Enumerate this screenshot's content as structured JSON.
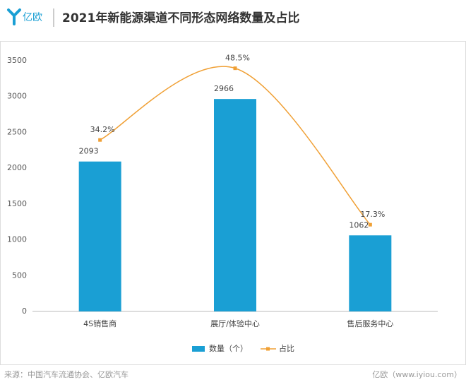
{
  "header": {
    "logo": "亿欧",
    "title": "2021年新能源渠道不同形态网络数量及占比"
  },
  "footer": {
    "source": "来源：中国汽车流通协会、亿欧汽车",
    "site": "亿欧（www.iyiou.com）"
  },
  "chart_data": {
    "type": "bar",
    "categories": [
      "4S销售商",
      "展厅/体验中心",
      "售后服务中心"
    ],
    "series": [
      {
        "name": "数量（个）",
        "type": "bar",
        "color": "#1a9fd4",
        "values": [
          2093,
          2966,
          1062
        ]
      },
      {
        "name": "占比",
        "type": "line",
        "axis": "y2",
        "color": "#f0a035",
        "values": [
          34.2,
          48.5,
          17.3
        ],
        "value_labels": [
          "34.2%",
          "48.5%",
          "17.3%"
        ]
      }
    ],
    "ylim": [
      0,
      3500
    ],
    "yticks": [
      0,
      500,
      1000,
      1500,
      2000,
      2500,
      3000,
      3500
    ],
    "y2lim": [
      0,
      50
    ],
    "legend": "bottom"
  }
}
